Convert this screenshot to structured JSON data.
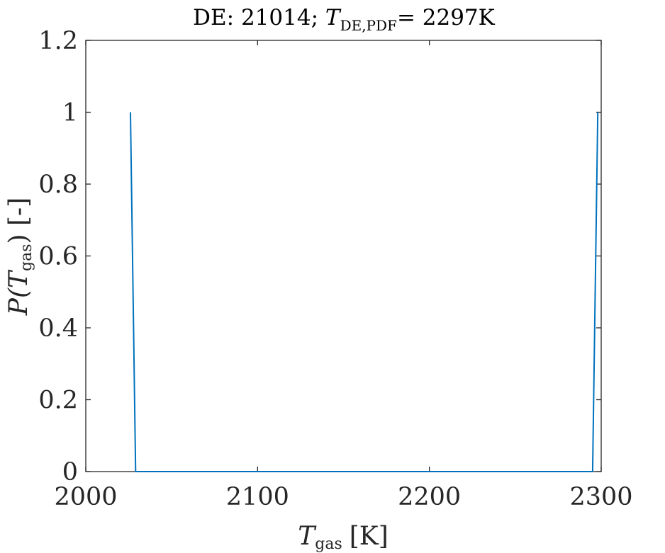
{
  "chart_data": {
    "type": "line",
    "title": {
      "prefix": "DE: 21014; ",
      "var": "T",
      "subscript": "DE,PDF",
      "suffix": "= 2297K"
    },
    "xlabel": {
      "var": "T",
      "subscript": "gas",
      "unit": "[K]"
    },
    "ylabel": {
      "var": "P(T",
      "subscript": "gas",
      "suffix": ") [-]"
    },
    "xlim": [
      2000,
      2300
    ],
    "ylim": [
      0,
      1.2
    ],
    "xticks": [
      2000,
      2100,
      2200,
      2300
    ],
    "yticks": [
      0,
      0.2,
      0.4,
      0.6,
      0.8,
      1,
      1.2
    ],
    "xtick_labels": [
      "2000",
      "2100",
      "2200",
      "2300"
    ],
    "ytick_labels": [
      "0",
      "0.2",
      "0.4",
      "0.6",
      "0.8",
      "1",
      "1.2"
    ],
    "grid": false,
    "series": [
      {
        "color": "#0072bd",
        "x": [
          2026,
          2029,
          2295,
          2298
        ],
        "y": [
          1,
          0,
          0,
          1
        ]
      }
    ]
  }
}
